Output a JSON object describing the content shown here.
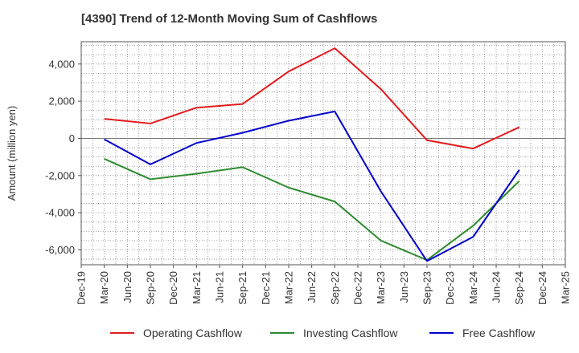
{
  "chart_data": {
    "type": "line",
    "title": "[4390]  Trend of 12-Month Moving Sum of Cashflows",
    "xlabel": "",
    "ylabel": "Amount (million yen)",
    "ylim": [
      -6800,
      5200
    ],
    "yticks": [
      -6000,
      -4000,
      -2000,
      0,
      2000,
      4000
    ],
    "ytick_labels": [
      "-6,000",
      "-4,000",
      "-2,000",
      "0",
      "2,000",
      "4,000"
    ],
    "categories": [
      "Dec-19",
      "Mar-20",
      "Jun-20",
      "Sep-20",
      "Dec-20",
      "Mar-21",
      "Jun-21",
      "Sep-21",
      "Dec-21",
      "Mar-22",
      "Jun-22",
      "Sep-22",
      "Dec-22",
      "Mar-23",
      "Jun-23",
      "Sep-23",
      "Dec-23",
      "Mar-24",
      "Jun-24",
      "Sep-24",
      "Dec-24",
      "Mar-25"
    ],
    "grid": true,
    "legend_position": "bottom",
    "series": [
      {
        "name": "Operating Cashflow",
        "color": "#e31a1c",
        "points": [
          [
            "Mar-20",
            1050
          ],
          [
            "Sep-20",
            800
          ],
          [
            "Mar-21",
            1650
          ],
          [
            "Sep-21",
            1850
          ],
          [
            "Mar-22",
            3600
          ],
          [
            "Sep-22",
            4850
          ],
          [
            "Mar-23",
            2650
          ],
          [
            "Sep-23",
            -100
          ],
          [
            "Mar-24",
            -550
          ],
          [
            "Sep-24",
            600
          ]
        ]
      },
      {
        "name": "Investing Cashflow",
        "color": "#2e8b2e",
        "points": [
          [
            "Mar-20",
            -1100
          ],
          [
            "Sep-20",
            -2200
          ],
          [
            "Mar-21",
            -1900
          ],
          [
            "Sep-21",
            -1550
          ],
          [
            "Mar-22",
            -2650
          ],
          [
            "Sep-22",
            -3400
          ],
          [
            "Mar-23",
            -5500
          ],
          [
            "Sep-23",
            -6550
          ],
          [
            "Mar-24",
            -4700
          ],
          [
            "Sep-24",
            -2300
          ]
        ]
      },
      {
        "name": "Free Cashflow",
        "color": "#0000cc",
        "points": [
          [
            "Mar-20",
            -50
          ],
          [
            "Sep-20",
            -1400
          ],
          [
            "Mar-21",
            -250
          ],
          [
            "Sep-21",
            300
          ],
          [
            "Mar-22",
            950
          ],
          [
            "Sep-22",
            1450
          ],
          [
            "Mar-23",
            -2850
          ],
          [
            "Sep-23",
            -6600
          ],
          [
            "Mar-24",
            -5300
          ],
          [
            "Sep-24",
            -1700
          ]
        ]
      }
    ]
  }
}
